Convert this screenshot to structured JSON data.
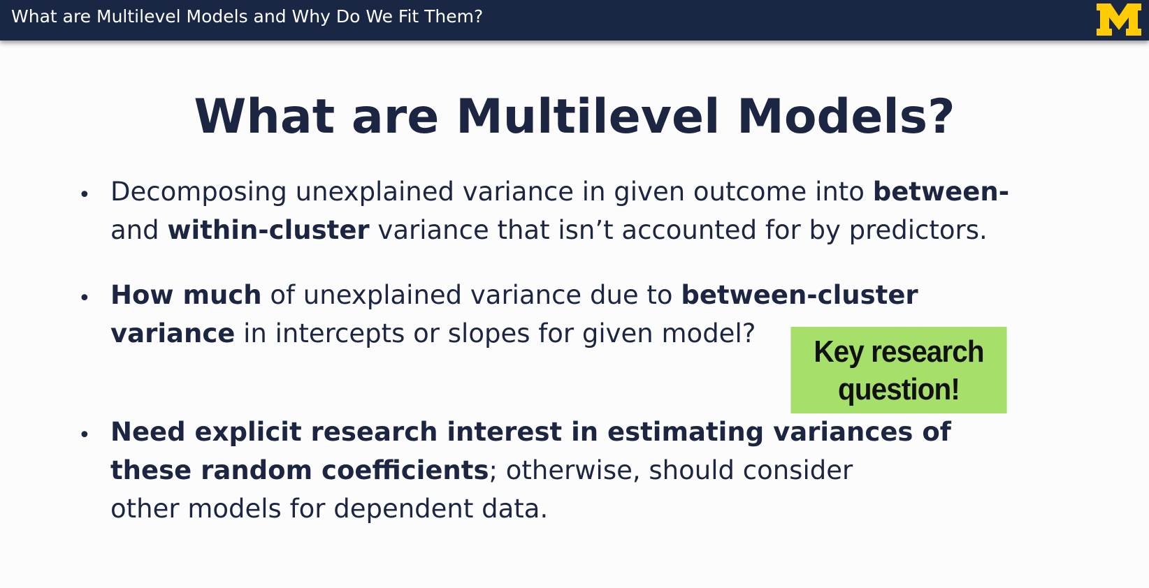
{
  "header": {
    "title": "What are Multilevel Models and Why Do We Fit Them?",
    "logo_label": "M",
    "brand_colors": {
      "bar": "#1a2744",
      "logo": "#ffcb05"
    }
  },
  "slide": {
    "title": "What are Multilevel Models?",
    "bullets": [
      {
        "lines": [
          [
            {
              "text": "Decomposing unexplained variance in given outcome into ",
              "bold": false
            },
            {
              "text": "between-",
              "bold": true
            }
          ],
          [
            {
              "text": "and ",
              "bold": false
            },
            {
              "text": "within-cluster",
              "bold": true
            },
            {
              "text": " variance that isn’t accounted for by predictors.",
              "bold": false
            }
          ]
        ]
      },
      {
        "lines": [
          [
            {
              "text": "How much",
              "bold": true
            },
            {
              "text": " of unexplained variance due to ",
              "bold": false
            },
            {
              "text": "between-cluster",
              "bold": true
            }
          ],
          [
            {
              "text": "variance",
              "bold": true
            },
            {
              "text": " in intercepts or slopes for given model?",
              "bold": false
            }
          ]
        ]
      },
      {
        "lines": [
          [
            {
              "text": "Need explicit research interest in estimating variances of",
              "bold": true
            }
          ],
          [
            {
              "text": "these random coefficients",
              "bold": true
            },
            {
              "text": "; otherwise, should consider",
              "bold": false
            }
          ],
          [
            {
              "text": "other models for dependent data.",
              "bold": false
            }
          ]
        ]
      }
    ],
    "callout": {
      "line1": "Key research",
      "line2": "question!",
      "color": "#a6e06a"
    }
  }
}
